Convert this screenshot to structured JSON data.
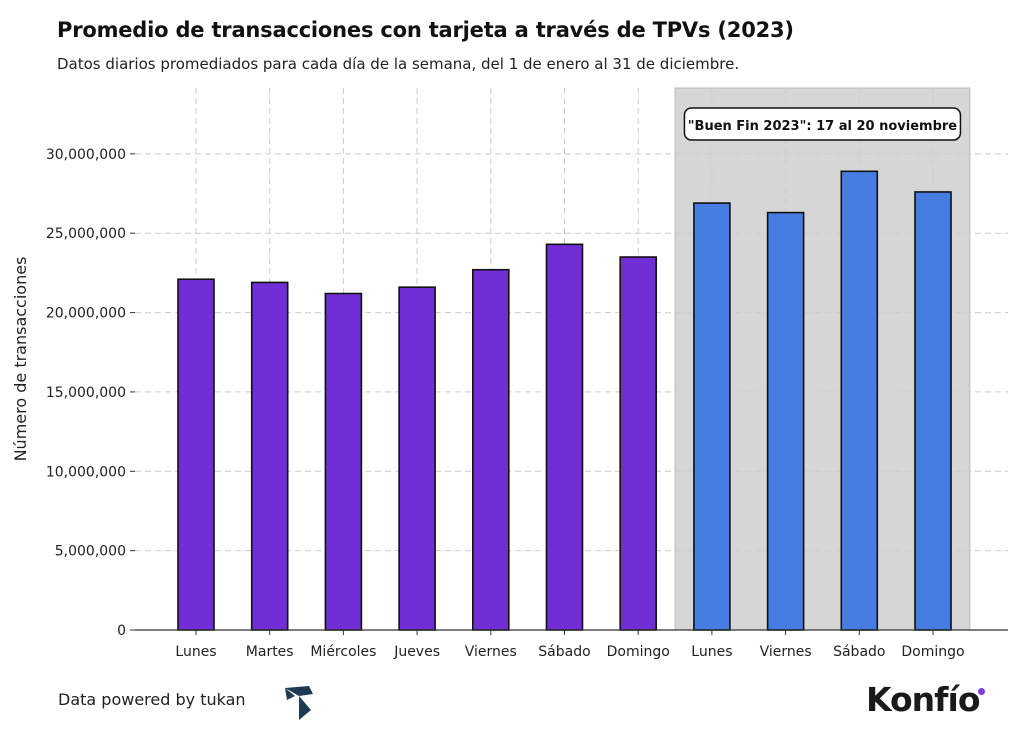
{
  "chart_data": {
    "type": "bar",
    "title": "Promedio de transacciones con tarjeta a través de TPVs (2023)",
    "subtitle": "Datos diarios promediados para cada día de la semana, del 1 de enero al 31 de diciembre.",
    "xlabel": "",
    "ylabel": "Número de transacciones",
    "categories": [
      "Lunes",
      "Martes",
      "Miércoles",
      "Jueves",
      "Viernes",
      "Sábado",
      "Domingo",
      "Lunes",
      "Viernes",
      "Sábado",
      "Domingo"
    ],
    "values": [
      22100000,
      21900000,
      21200000,
      21600000,
      22700000,
      24300000,
      23500000,
      26900000,
      26300000,
      28900000,
      27600000
    ],
    "bar_colors": [
      "#722ed6",
      "#722ed6",
      "#722ed6",
      "#722ed6",
      "#722ed6",
      "#722ed6",
      "#722ed6",
      "#467de3",
      "#467de3",
      "#467de3",
      "#467de3"
    ],
    "ylim": [
      0,
      34150000
    ],
    "yticks": [
      0,
      5000000,
      10000000,
      15000000,
      20000000,
      25000000,
      30000000
    ],
    "ytick_labels": [
      "0",
      "5,000,000",
      "10,000,000",
      "15,000,000",
      "20,000,000",
      "25,000,000",
      "30,000,000"
    ],
    "grid": true,
    "highlight": {
      "from_index": 7,
      "to_index": 10,
      "color": "#d6d6d6",
      "label": "\"Buen Fin 2023\": 17 al 20 noviembre"
    }
  },
  "footer": {
    "powered_by": "Data powered by tukan",
    "brand": "Konfío",
    "tukan_color": "#1d3a52",
    "brand_dot_color": "#7b3fe4"
  }
}
